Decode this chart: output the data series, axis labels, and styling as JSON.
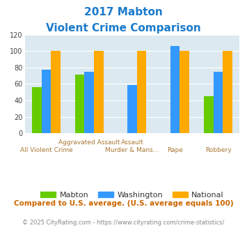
{
  "title_line1": "2017 Mabton",
  "title_line2": "Violent Crime Comparison",
  "categories": [
    "All Violent Crime",
    "Aggravated Assault",
    "Murder & Mans...",
    "Rape",
    "Robbery"
  ],
  "xlabels_row1": [
    "",
    "Aggravated Assault",
    "Assault",
    "",
    ""
  ],
  "xlabels_row2": [
    "All Violent Crime",
    "",
    "Murder & Mans...",
    "Rape",
    "Robbery"
  ],
  "series": {
    "Mabton": [
      56,
      71,
      0,
      0,
      45
    ],
    "Washington": [
      77,
      75,
      59,
      106,
      75
    ],
    "National": [
      100,
      100,
      100,
      100,
      100
    ]
  },
  "colors": {
    "Mabton": "#66cc00",
    "Washington": "#3399ff",
    "National": "#ffaa00"
  },
  "ylim": [
    0,
    120
  ],
  "yticks": [
    0,
    20,
    40,
    60,
    80,
    100,
    120
  ],
  "background_color": "#dce9f0",
  "title_color": "#1a7acc",
  "xlabel_color": "#aa7733",
  "footer_text": "Compared to U.S. average. (U.S. average equals 100)",
  "credit_text": "© 2025 CityRating.com - https://www.cityrating.com/crime-statistics/",
  "footer_color": "#cc6600",
  "credit_color": "#888888",
  "bar_width": 0.22
}
